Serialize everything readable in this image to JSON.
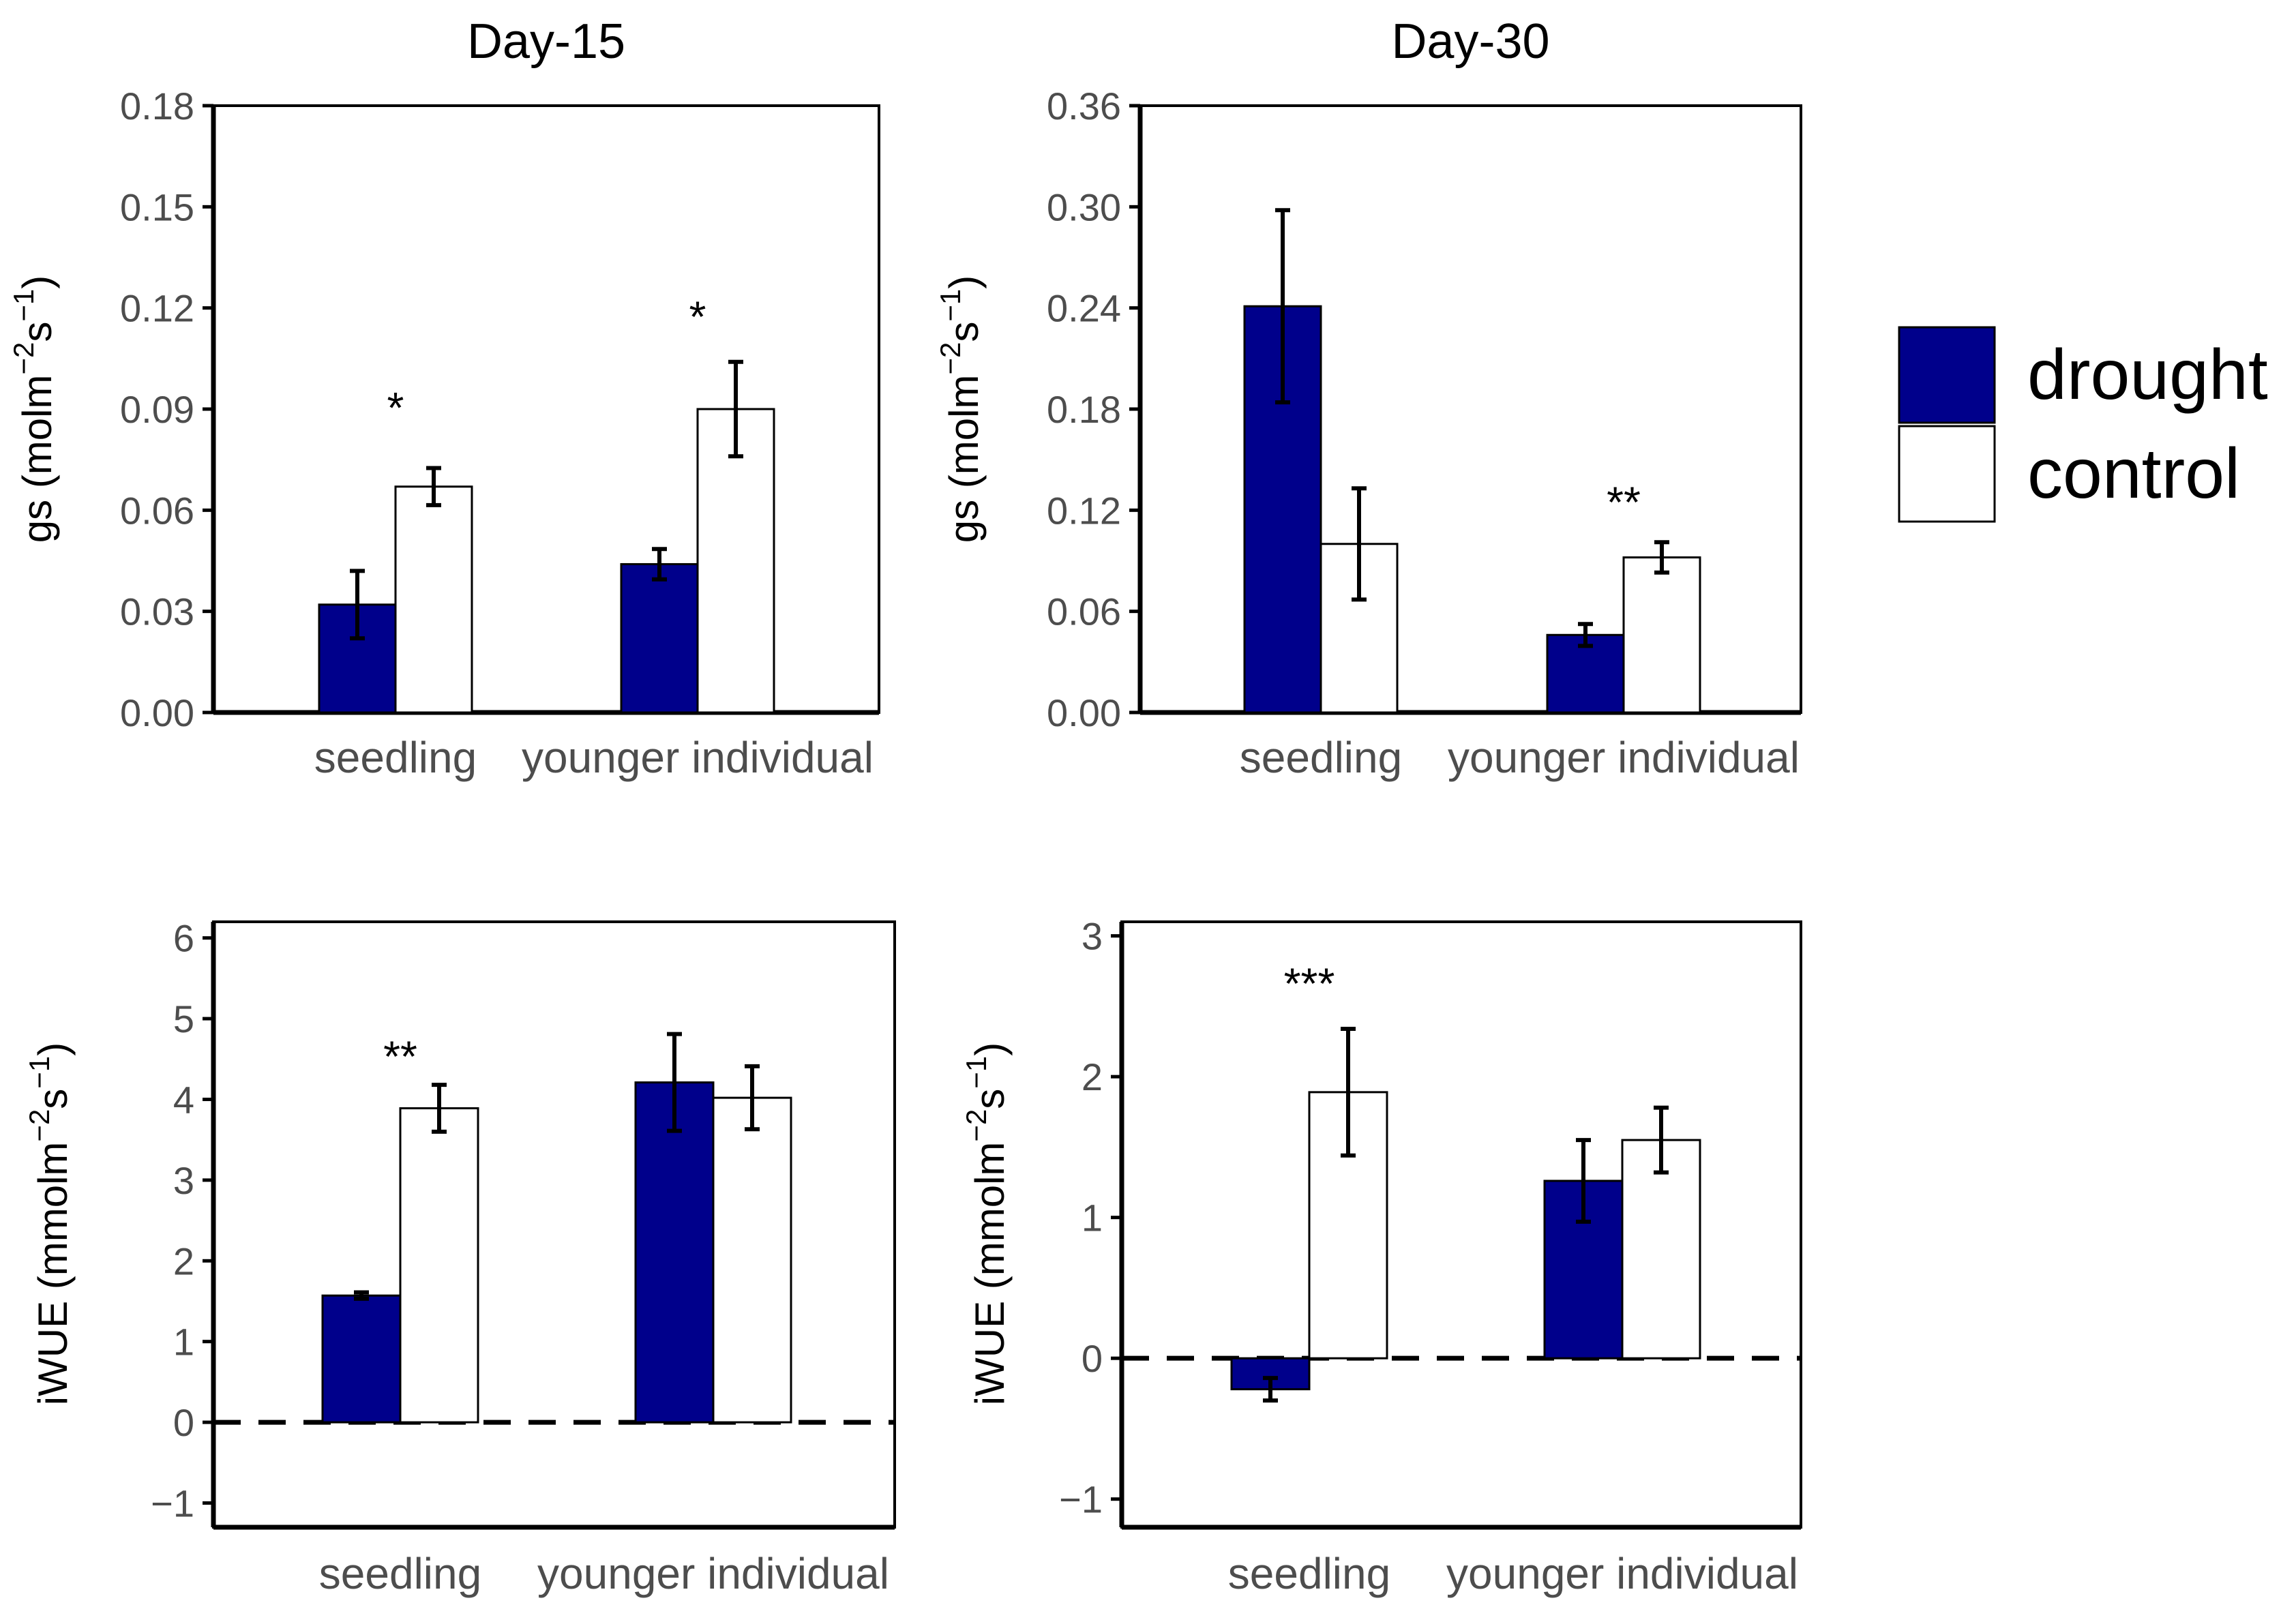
{
  "colors": {
    "drought": "#00008b",
    "control": "#ffffff",
    "outline": "#000000",
    "tick_text": "#4d4d4d"
  },
  "legend": [
    {
      "name": "drought",
      "color": "#00008b"
    },
    {
      "name": "control",
      "color": "#ffffff"
    }
  ],
  "chart_data": [
    {
      "type": "bar",
      "title": "Day-15",
      "ylabel_main": "gs (molm",
      "ylabel_sup1": "−2",
      "ylabel_mid": "s",
      "ylabel_sup2": "−1",
      "ylabel_end": ")",
      "categories": [
        "seedling",
        "younger individual"
      ],
      "ylim": [
        0,
        0.18
      ],
      "yticks": [
        0.0,
        0.03,
        0.06,
        0.09,
        0.12,
        0.15,
        0.18
      ],
      "ytick_labels": [
        "0.00",
        "0.03",
        "0.06",
        "0.09",
        "0.12",
        "0.15",
        "0.18"
      ],
      "zero_line": false,
      "series": [
        {
          "name": "drought",
          "values": [
            0.032,
            0.044
          ],
          "errors": [
            0.01,
            0.0045
          ]
        },
        {
          "name": "control",
          "values": [
            0.067,
            0.09
          ],
          "errors": [
            0.0055,
            0.014
          ]
        }
      ],
      "annotations": [
        {
          "category": 0,
          "text": "*",
          "y": 0.092
        },
        {
          "category": 1,
          "text": "*",
          "y": 0.119
        }
      ]
    },
    {
      "type": "bar",
      "title": "Day-30",
      "ylabel_main": "gs (molm",
      "ylabel_sup1": "−2",
      "ylabel_mid": "s",
      "ylabel_sup2": "−1",
      "ylabel_end": ")",
      "categories": [
        "seedling",
        "younger individual"
      ],
      "ylim": [
        0,
        0.36
      ],
      "yticks": [
        0.0,
        0.06,
        0.12,
        0.18,
        0.24,
        0.3,
        0.36
      ],
      "ytick_labels": [
        "0.00",
        "0.06",
        "0.12",
        "0.18",
        "0.24",
        "0.30",
        "0.36"
      ],
      "zero_line": false,
      "series": [
        {
          "name": "drought",
          "values": [
            0.241,
            0.046
          ],
          "errors": [
            0.057,
            0.0065
          ]
        },
        {
          "name": "control",
          "values": [
            0.1,
            0.092
          ],
          "errors": [
            0.033,
            0.009
          ]
        }
      ],
      "annotations": [
        {
          "category": 1,
          "text": "**",
          "y": 0.128
        }
      ]
    },
    {
      "type": "bar",
      "title": "",
      "ylabel_main": "iWUE (mmolm",
      "ylabel_sup1": "−2",
      "ylabel_mid": "s",
      "ylabel_sup2": "−1",
      "ylabel_end": ")",
      "categories": [
        "seedling",
        "younger individual"
      ],
      "ylim": [
        -1.3,
        6.2
      ],
      "yticks": [
        -1,
        0,
        1,
        2,
        3,
        4,
        5,
        6
      ],
      "ytick_labels": [
        "−1",
        "0",
        "1",
        "2",
        "3",
        "4",
        "5",
        "6"
      ],
      "zero_line": true,
      "series": [
        {
          "name": "drought",
          "values": [
            1.57,
            4.21
          ],
          "errors": [
            0.04,
            0.6
          ]
        },
        {
          "name": "control",
          "values": [
            3.89,
            4.02
          ],
          "errors": [
            0.29,
            0.39
          ]
        }
      ],
      "annotations": [
        {
          "category": 0,
          "text": "**",
          "y": 4.6
        }
      ]
    },
    {
      "type": "bar",
      "title": "",
      "ylabel_main": "iWUE (mmolm",
      "ylabel_sup1": "−2",
      "ylabel_mid": "s",
      "ylabel_sup2": "−1",
      "ylabel_end": ")",
      "categories": [
        "seedling",
        "younger individual"
      ],
      "ylim": [
        -1.2,
        3.1
      ],
      "yticks": [
        -1,
        0,
        1,
        2,
        3
      ],
      "ytick_labels": [
        "−1",
        "0",
        "1",
        "2",
        "3"
      ],
      "zero_line": true,
      "series": [
        {
          "name": "drought",
          "values": [
            -0.22,
            1.26
          ],
          "errors": [
            0.08,
            0.29
          ]
        },
        {
          "name": "control",
          "values": [
            1.89,
            1.55
          ],
          "errors": [
            0.45,
            0.23
          ]
        }
      ],
      "annotations": [
        {
          "category": 0,
          "text": "***",
          "y": 2.7
        }
      ]
    }
  ]
}
